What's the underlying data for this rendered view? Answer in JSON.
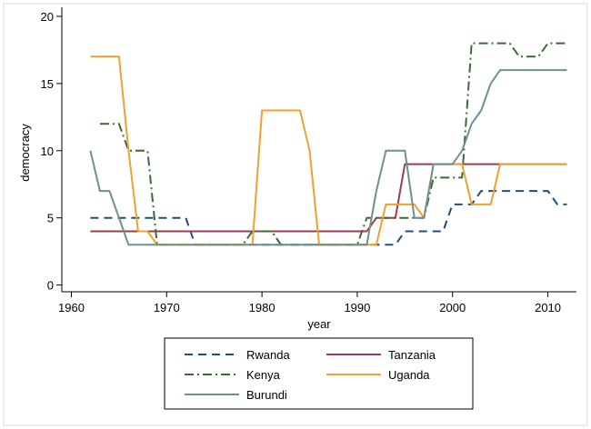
{
  "chart_data": {
    "type": "line",
    "title": "",
    "xlabel": "year",
    "ylabel": "democracy",
    "xlim": [
      1959,
      2013
    ],
    "ylim": [
      -0.5,
      20
    ],
    "xticks": [
      1960,
      1970,
      1980,
      1990,
      2000,
      2010
    ],
    "yticks": [
      0,
      5,
      10,
      15,
      20
    ],
    "grid": false,
    "legend_position": "bottom",
    "series": [
      {
        "name": "Rwanda",
        "color": "#1f4e79",
        "dash": "dashed",
        "points": [
          [
            1962,
            5
          ],
          [
            1972,
            5
          ],
          [
            1973,
            3
          ],
          [
            1992,
            3
          ],
          [
            1994,
            3
          ],
          [
            1995,
            4
          ],
          [
            1999,
            4
          ],
          [
            2000,
            6
          ],
          [
            2002,
            6
          ],
          [
            2003,
            7
          ],
          [
            2008,
            7
          ],
          [
            2010,
            7
          ],
          [
            2011,
            6
          ],
          [
            2012,
            6
          ]
        ]
      },
      {
        "name": "Tanzania",
        "color": "#9e3d4e",
        "dash": "solid",
        "points": [
          [
            1962,
            4
          ],
          [
            1991,
            4
          ],
          [
            1992,
            5
          ],
          [
            1994,
            5
          ],
          [
            1995,
            9
          ],
          [
            2012,
            9
          ]
        ]
      },
      {
        "name": "Kenya",
        "color": "#3a6b35",
        "dash": "dashdot",
        "points": [
          [
            1963,
            12
          ],
          [
            1965,
            12
          ],
          [
            1966,
            10
          ],
          [
            1968,
            10
          ],
          [
            1969,
            3
          ],
          [
            1978,
            3
          ],
          [
            1979,
            4
          ],
          [
            1981,
            4
          ],
          [
            1982,
            3
          ],
          [
            1990,
            3
          ],
          [
            1991,
            5
          ],
          [
            1994,
            5
          ],
          [
            1995,
            5
          ],
          [
            1996,
            5
          ],
          [
            1997,
            5
          ],
          [
            1998,
            8
          ],
          [
            2001,
            8
          ],
          [
            2002,
            18
          ],
          [
            2006,
            18
          ],
          [
            2007,
            17
          ],
          [
            2009,
            17
          ],
          [
            2010,
            18
          ],
          [
            2012,
            18
          ]
        ]
      },
      {
        "name": "Uganda",
        "color": "#f0a030",
        "dash": "solid",
        "points": [
          [
            1962,
            17
          ],
          [
            1965,
            17
          ],
          [
            1966,
            10
          ],
          [
            1967,
            4
          ],
          [
            1968,
            4
          ],
          [
            1969,
            3
          ],
          [
            1979,
            3
          ],
          [
            1980,
            13
          ],
          [
            1984,
            13
          ],
          [
            1985,
            10
          ],
          [
            1986,
            3
          ],
          [
            1992,
            3
          ],
          [
            1993,
            6
          ],
          [
            1996,
            6
          ],
          [
            1997,
            5
          ],
          [
            1998,
            9
          ],
          [
            2001,
            9
          ],
          [
            2002,
            6
          ],
          [
            2004,
            6
          ],
          [
            2005,
            9
          ],
          [
            2012,
            9
          ]
        ]
      },
      {
        "name": "Burundi",
        "color": "#6d9190",
        "dash": "solid",
        "points": [
          [
            1962,
            10
          ],
          [
            1963,
            7
          ],
          [
            1964,
            7
          ],
          [
            1966,
            3
          ],
          [
            1991,
            3
          ],
          [
            1992,
            7
          ],
          [
            1993,
            10
          ],
          [
            1995,
            10
          ],
          [
            1996,
            5
          ],
          [
            1997,
            5
          ],
          [
            1998,
            9
          ],
          [
            2000,
            9
          ],
          [
            2001,
            10
          ],
          [
            2002,
            12
          ],
          [
            2003,
            13
          ],
          [
            2004,
            15
          ],
          [
            2005,
            16
          ],
          [
            2012,
            16
          ]
        ]
      }
    ]
  }
}
